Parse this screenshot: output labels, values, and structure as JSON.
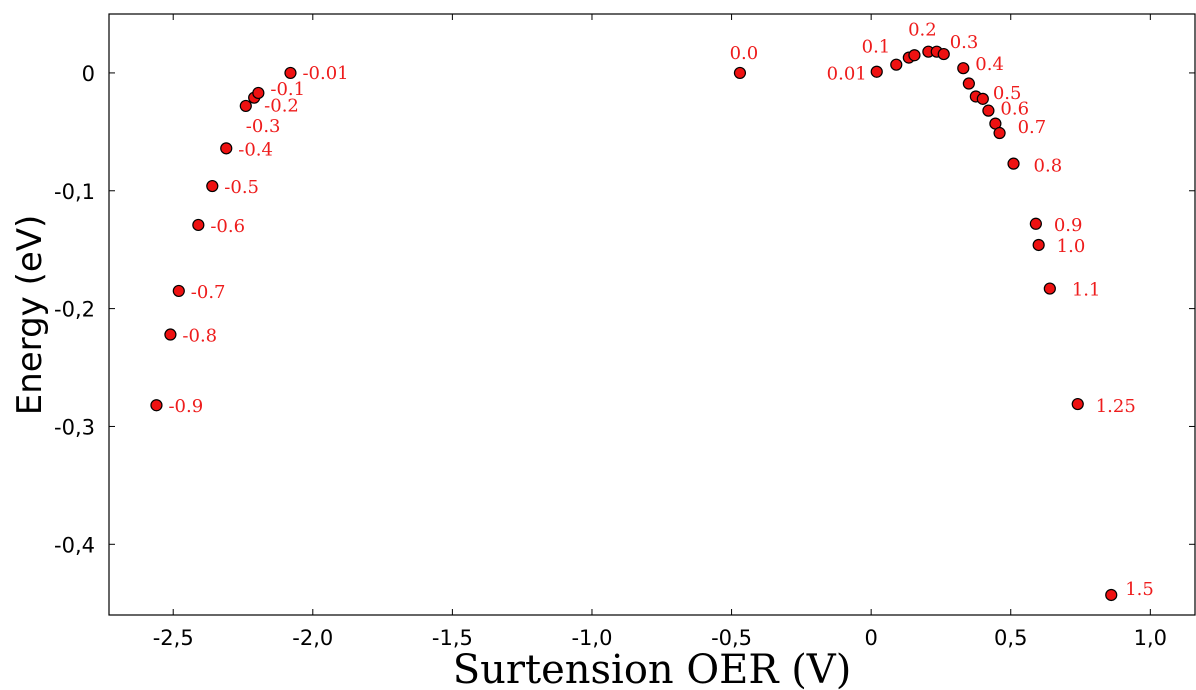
{
  "chart_data": {
    "type": "scatter",
    "xlabel": "Surtension OER (V)",
    "ylabel": "Energy (eV)",
    "xlim": [
      -2.73,
      1.16
    ],
    "ylim": [
      -0.46,
      0.05
    ],
    "grid": false,
    "marker_color": "#ee1111",
    "marker_edge": "#000000",
    "label_color": "#ee1c1c",
    "x_ticks": [
      {
        "value": -2.5,
        "label": "-2,5"
      },
      {
        "value": -2.0,
        "label": "-2,0"
      },
      {
        "value": -1.5,
        "label": "-1,5"
      },
      {
        "value": -1.0,
        "label": "-1,0"
      },
      {
        "value": -0.5,
        "label": "-0,5"
      },
      {
        "value": 0.0,
        "label": "0"
      },
      {
        "value": 0.5,
        "label": "0,5"
      },
      {
        "value": 1.0,
        "label": "1,0"
      }
    ],
    "y_ticks": [
      {
        "value": 0.0,
        "label": "0"
      },
      {
        "value": -0.1,
        "label": "-0,1"
      },
      {
        "value": -0.2,
        "label": "-0,2"
      },
      {
        "value": -0.3,
        "label": "-0,3"
      },
      {
        "value": -0.4,
        "label": "-0,4"
      }
    ],
    "points": [
      {
        "x": -2.56,
        "y": -0.282,
        "label": "-0.9"
      },
      {
        "x": -2.51,
        "y": -0.222,
        "label": "-0.8"
      },
      {
        "x": -2.48,
        "y": -0.185,
        "label": "-0.7"
      },
      {
        "x": -2.41,
        "y": -0.129,
        "label": "-0.6"
      },
      {
        "x": -2.36,
        "y": -0.096,
        "label": "-0.5"
      },
      {
        "x": -2.31,
        "y": -0.064,
        "label": "-0.4"
      },
      {
        "x": -2.24,
        "y": -0.028,
        "label": "-0.3"
      },
      {
        "x": -2.21,
        "y": -0.021,
        "label": "-0.2"
      },
      {
        "x": -2.195,
        "y": -0.017,
        "label": "-0.1"
      },
      {
        "x": -2.08,
        "y": 0.0,
        "label": "-0.01"
      },
      {
        "x": -0.47,
        "y": 0.0,
        "label": "0.0"
      },
      {
        "x": 0.02,
        "y": 0.001,
        "label": "0.01"
      },
      {
        "x": 0.09,
        "y": 0.007,
        "label": "0.1"
      },
      {
        "x": 0.135,
        "y": 0.013,
        "label": ""
      },
      {
        "x": 0.155,
        "y": 0.015,
        "label": ""
      },
      {
        "x": 0.205,
        "y": 0.018,
        "label": "0.2"
      },
      {
        "x": 0.235,
        "y": 0.018,
        "label": ""
      },
      {
        "x": 0.26,
        "y": 0.016,
        "label": "0.3"
      },
      {
        "x": 0.33,
        "y": 0.004,
        "label": "0.4"
      },
      {
        "x": 0.35,
        "y": -0.009,
        "label": ""
      },
      {
        "x": 0.375,
        "y": -0.02,
        "label": ""
      },
      {
        "x": 0.4,
        "y": -0.022,
        "label": "0.5"
      },
      {
        "x": 0.42,
        "y": -0.032,
        "label": "0.6"
      },
      {
        "x": 0.445,
        "y": -0.043,
        "label": ""
      },
      {
        "x": 0.46,
        "y": -0.051,
        "label": "0.7"
      },
      {
        "x": 0.51,
        "y": -0.077,
        "label": "0.8"
      },
      {
        "x": 0.59,
        "y": -0.128,
        "label": "0.9"
      },
      {
        "x": 0.6,
        "y": -0.146,
        "label": "1.0"
      },
      {
        "x": 0.64,
        "y": -0.183,
        "label": "1.1"
      },
      {
        "x": 0.74,
        "y": -0.281,
        "label": "1.25"
      },
      {
        "x": 0.86,
        "y": -0.443,
        "label": "1.5"
      }
    ]
  }
}
